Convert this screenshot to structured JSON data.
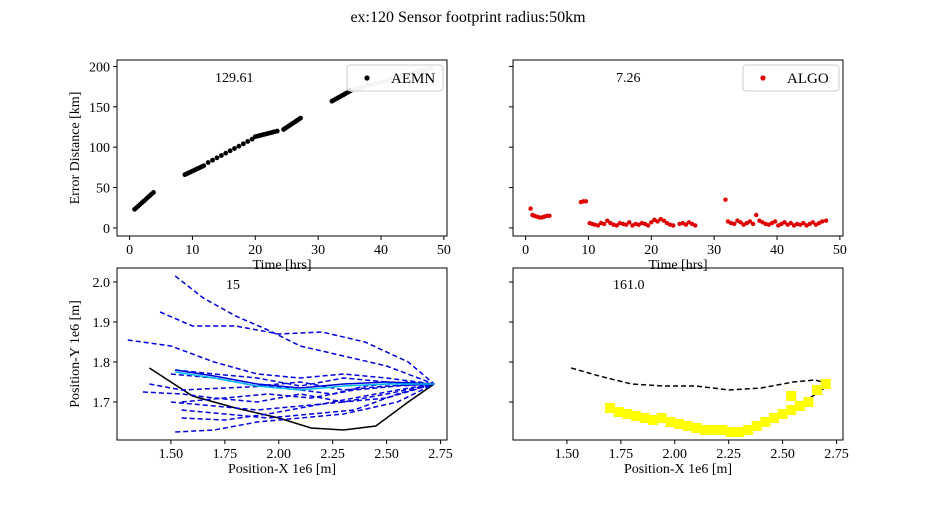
{
  "figure": {
    "title": "ex:120  Sensor footprint radius:50km"
  },
  "chart_data": [
    {
      "type": "scatter",
      "panel": "top-left",
      "annotation": "129.61",
      "xlabel": "Time [hrs]",
      "ylabel": "Error Distance [km]",
      "xlim": [
        -2,
        50.5
      ],
      "ylim": [
        -10,
        208
      ],
      "xticks": [
        0,
        10,
        20,
        30,
        40,
        50
      ],
      "yticks": [
        0,
        50,
        100,
        150,
        200
      ],
      "legend": {
        "label": "AEMN",
        "placement": "top-right",
        "color": "#000000"
      },
      "series": [
        {
          "name": "AEMN",
          "color": "#000000",
          "segments": [
            {
              "t": [
                0.8,
                3.8
              ],
              "e": [
                23,
                44
              ]
            },
            {
              "t": [
                8.8,
                11.8
              ],
              "e": [
                66,
                77
              ]
            },
            {
              "t": [
                12.5,
                19.5
              ],
              "e": [
                81,
                110
              ]
            },
            {
              "t": [
                20,
                23.5
              ],
              "e": [
                113,
                120
              ]
            },
            {
              "t": [
                24.5,
                27.2
              ],
              "e": [
                122,
                136
              ]
            },
            {
              "t": [
                32.2,
                35.2
              ],
              "e": [
                157,
                170
              ]
            }
          ],
          "faded": {
            "t": [
              35.5,
              48
            ],
            "e": [
              171,
              198
            ]
          }
        }
      ]
    },
    {
      "type": "scatter",
      "panel": "top-right",
      "annotation": "7.26",
      "xlabel": "Time [hrs]",
      "ylabel": "",
      "xlim": [
        -2,
        50.5
      ],
      "ylim": [
        -10,
        208
      ],
      "xticks": [
        0,
        10,
        20,
        30,
        40,
        50
      ],
      "yticks": [
        0,
        50,
        100,
        150,
        200
      ],
      "legend": {
        "label": "ALGO",
        "placement": "top-right",
        "color": "#e00000"
      },
      "series": [
        {
          "name": "ALGO",
          "color": "#e00000",
          "t": [
            0.8,
            1.1,
            1.4,
            1.8,
            2.2,
            2.6,
            3.0,
            3.4,
            3.8,
            8.8,
            9.2,
            9.6,
            10.2,
            10.6,
            11.0,
            11.5,
            12.0,
            12.5,
            13.0,
            13.5,
            14.0,
            14.5,
            15.0,
            15.5,
            16.0,
            16.5,
            17.0,
            17.5,
            18.0,
            18.5,
            19.0,
            19.5,
            20.0,
            20.5,
            21.0,
            21.5,
            22.0,
            22.5,
            23.0,
            23.5,
            24.5,
            25.0,
            25.5,
            26.0,
            26.5,
            27.0,
            31.8,
            32.2,
            32.7,
            33.2,
            33.7,
            34.2,
            34.7,
            35.2,
            35.7,
            36.2,
            36.7,
            37.2,
            37.7,
            38.2,
            38.7,
            39.2,
            39.7,
            40.2,
            40.7,
            41.2,
            41.7,
            42.2,
            42.7,
            43.2,
            43.7,
            44.2,
            44.7,
            45.2,
            45.7,
            46.2,
            46.7,
            47.2,
            47.8
          ],
          "e": [
            24,
            16,
            15,
            14,
            13,
            13,
            14,
            15,
            15,
            32,
            33,
            33,
            6,
            5,
            4,
            3,
            6,
            5,
            9,
            6,
            4,
            3,
            6,
            5,
            4,
            7,
            3,
            5,
            4,
            6,
            5,
            3,
            7,
            10,
            8,
            11,
            9,
            6,
            4,
            3,
            5,
            6,
            4,
            7,
            5,
            3,
            35,
            8,
            6,
            5,
            9,
            7,
            4,
            6,
            8,
            5,
            16,
            9,
            7,
            5,
            4,
            6,
            8,
            3,
            5,
            7,
            4,
            6,
            3,
            5,
            4,
            6,
            3,
            5,
            7,
            4,
            6,
            8,
            9
          ]
        }
      ]
    },
    {
      "type": "line",
      "panel": "bottom-left",
      "annotation": "15",
      "xlabel": "Position-X 1e6 [m]",
      "ylabel": "Position-Y 1e6 [m]",
      "xlim": [
        1.25,
        2.78
      ],
      "ylim": [
        1.605,
        2.035
      ],
      "xticks": [
        1.5,
        1.75,
        2.0,
        2.25,
        2.5,
        2.75
      ],
      "yticks": [
        1.7,
        1.8,
        1.9,
        2.0
      ],
      "series": [
        {
          "name": "",
          "style": "solid",
          "color": "#000000",
          "x": [
            1.4,
            1.6,
            1.8,
            2.0,
            2.15,
            2.3,
            2.45,
            2.6,
            2.72
          ],
          "y": [
            1.785,
            1.715,
            1.685,
            1.66,
            1.635,
            1.63,
            1.64,
            1.7,
            1.745
          ]
        },
        {
          "name": "",
          "style": "dashed",
          "color": "#0000dd",
          "x": [
            1.52,
            1.65,
            1.8,
            1.95,
            2.1,
            2.3,
            2.5,
            2.72
          ],
          "y": [
            2.015,
            1.96,
            1.915,
            1.88,
            1.84,
            1.815,
            1.79,
            1.745
          ]
        },
        {
          "name": "",
          "style": "dashed",
          "color": "#0000dd",
          "x": [
            1.45,
            1.6,
            1.8,
            2.0,
            2.2,
            2.4,
            2.6,
            2.72
          ],
          "y": [
            1.925,
            1.89,
            1.89,
            1.87,
            1.875,
            1.85,
            1.8,
            1.745
          ]
        },
        {
          "name": "",
          "style": "dashed",
          "color": "#0000dd",
          "x": [
            1.3,
            1.5,
            1.7,
            1.9,
            2.1,
            2.3,
            2.5,
            2.72
          ],
          "y": [
            1.855,
            1.84,
            1.8,
            1.77,
            1.76,
            1.77,
            1.76,
            1.745
          ]
        },
        {
          "name": "",
          "style": "dashed",
          "color": "#0000dd",
          "x": [
            1.4,
            1.55,
            1.75,
            1.95,
            2.1,
            2.25,
            2.4,
            2.6,
            2.72
          ],
          "y": [
            1.745,
            1.73,
            1.735,
            1.74,
            1.73,
            1.72,
            1.74,
            1.75,
            1.745
          ]
        },
        {
          "name": "",
          "style": "dashed",
          "color": "#0000dd",
          "x": [
            1.37,
            1.55,
            1.7,
            1.9,
            2.1,
            2.3,
            2.5,
            2.72
          ],
          "y": [
            1.725,
            1.72,
            1.71,
            1.7,
            1.72,
            1.7,
            1.71,
            1.745
          ]
        },
        {
          "name": "",
          "style": "dashed",
          "color": "#0000dd",
          "x": [
            1.5,
            1.7,
            1.9,
            2.1,
            2.3,
            2.5,
            2.72
          ],
          "y": [
            1.7,
            1.69,
            1.68,
            1.69,
            1.7,
            1.72,
            1.745
          ]
        },
        {
          "name": "",
          "style": "dashed",
          "color": "#0000dd",
          "x": [
            1.55,
            1.75,
            1.95,
            2.15,
            2.35,
            2.55,
            2.72
          ],
          "y": [
            1.68,
            1.67,
            1.66,
            1.67,
            1.68,
            1.72,
            1.745
          ]
        },
        {
          "name": "",
          "style": "dashed",
          "color": "#0000dd",
          "x": [
            1.52,
            1.7,
            1.9,
            2.1,
            2.3,
            2.55,
            2.72
          ],
          "y": [
            1.625,
            1.63,
            1.65,
            1.66,
            1.67,
            1.7,
            1.745
          ]
        },
        {
          "name": "",
          "style": "dashed",
          "color": "#0000dd",
          "x": [
            1.55,
            1.75,
            1.95,
            2.15,
            2.35,
            2.55,
            2.72
          ],
          "y": [
            1.66,
            1.655,
            1.67,
            1.69,
            1.71,
            1.73,
            1.745
          ]
        },
        {
          "name": "",
          "style": "dashed",
          "color": "#0000dd",
          "x": [
            1.5,
            1.7,
            1.9,
            2.1,
            2.3,
            2.5,
            2.72
          ],
          "y": [
            1.77,
            1.76,
            1.74,
            1.75,
            1.73,
            1.74,
            1.745
          ]
        },
        {
          "name": "",
          "style": "dashed",
          "color": "#0000dd",
          "x": [
            1.52,
            1.7,
            1.9,
            2.1,
            2.3,
            2.5,
            2.72
          ],
          "y": [
            1.78,
            1.77,
            1.76,
            1.74,
            1.76,
            1.75,
            1.745
          ]
        },
        {
          "name": "",
          "style": "dashed",
          "color": "#0000dd",
          "x": [
            1.55,
            1.75,
            1.95,
            2.15,
            2.35,
            2.55,
            2.72
          ],
          "y": [
            1.7,
            1.71,
            1.72,
            1.71,
            1.73,
            1.74,
            1.745
          ]
        },
        {
          "name": "",
          "style": "solid",
          "color": "#0000dd",
          "x": [
            1.52,
            1.7,
            1.9,
            2.1,
            2.3,
            2.5,
            2.72
          ],
          "y": [
            1.78,
            1.765,
            1.745,
            1.735,
            1.745,
            1.75,
            1.745
          ]
        },
        {
          "name": "",
          "style": "solid",
          "color": "#00bbee",
          "x": [
            1.52,
            1.7,
            1.9,
            2.1,
            2.3,
            2.5,
            2.72
          ],
          "y": [
            1.775,
            1.76,
            1.74,
            1.73,
            1.74,
            1.745,
            1.745
          ]
        }
      ]
    },
    {
      "type": "line",
      "panel": "bottom-right",
      "annotation": "161.0",
      "xlabel": "Position-X 1e6 [m]",
      "ylabel": "",
      "xlim": [
        1.25,
        2.78
      ],
      "ylim": [
        1.605,
        2.035
      ],
      "xticks": [
        1.5,
        1.75,
        2.0,
        2.25,
        2.5,
        2.75
      ],
      "yticks": [
        1.7,
        1.8,
        1.9,
        2.0
      ],
      "series": [
        {
          "name": "",
          "style": "dashed",
          "color": "#000000",
          "x": [
            1.52,
            1.65,
            1.8,
            1.95,
            2.1,
            2.25,
            2.4,
            2.55,
            2.65,
            2.72
          ],
          "y": [
            1.785,
            1.765,
            1.745,
            1.74,
            1.74,
            1.73,
            1.735,
            1.75,
            1.755,
            1.745
          ]
        },
        {
          "name": "",
          "style": "solid",
          "color": "#000000",
          "x": [
            1.7,
            1.8,
            1.9,
            2.0,
            2.1,
            2.2,
            2.3,
            2.4,
            2.5,
            2.6,
            2.72
          ],
          "y": [
            1.685,
            1.665,
            1.655,
            1.645,
            1.635,
            1.63,
            1.63,
            1.645,
            1.67,
            1.7,
            1.745
          ]
        },
        {
          "name": "",
          "style": "markers",
          "color": "#ffff00",
          "x": [
            1.7,
            1.74,
            1.78,
            1.82,
            1.86,
            1.9,
            1.94,
            1.98,
            2.02,
            2.06,
            2.1,
            2.14,
            2.18,
            2.22,
            2.26,
            2.3,
            2.34,
            2.38,
            2.42,
            2.46,
            2.5,
            2.54,
            2.58,
            2.62,
            2.66,
            2.7,
            2.54
          ],
          "y": [
            1.685,
            1.675,
            1.67,
            1.665,
            1.66,
            1.655,
            1.66,
            1.65,
            1.645,
            1.64,
            1.635,
            1.63,
            1.63,
            1.63,
            1.625,
            1.625,
            1.63,
            1.64,
            1.65,
            1.66,
            1.67,
            1.68,
            1.69,
            1.7,
            1.73,
            1.745,
            1.715
          ]
        }
      ]
    }
  ]
}
